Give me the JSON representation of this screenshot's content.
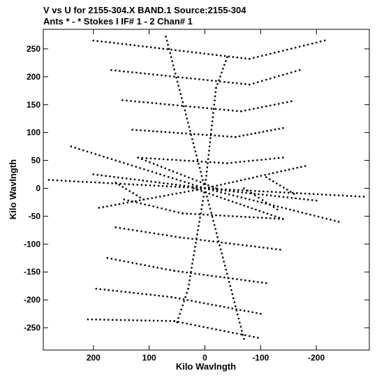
{
  "chart_data": {
    "type": "scatter",
    "title": "V vs U for 2155-304.X BAND.1   Source:2155-304",
    "subtitle": "Ants * - *    Stokes I  IF# 1 - 2  Chan# 1",
    "xlabel": "Kilo Wavlngth",
    "ylabel": "Kilo Wavlngth",
    "xlim": [
      290,
      -295
    ],
    "ylim": [
      -290,
      285
    ],
    "xticks": [
      200,
      100,
      0,
      -100,
      -200
    ],
    "yticks": [
      250,
      200,
      150,
      100,
      50,
      0,
      -50,
      -100,
      -150,
      -200,
      -250
    ],
    "grid": false,
    "legend": "none",
    "marker_color": "#000000",
    "tracks": [
      {
        "from": [
          70,
          272
        ],
        "to": [
          0,
          0
        ]
      },
      {
        "from": [
          200,
          265
        ],
        "to": [
          -80,
          232
        ]
      },
      {
        "from": [
          -80,
          232
        ],
        "to": [
          -215,
          265
        ]
      },
      {
        "from": [
          168,
          212
        ],
        "to": [
          -80,
          186
        ]
      },
      {
        "from": [
          -80,
          186
        ],
        "to": [
          -170,
          212
        ]
      },
      {
        "from": [
          148,
          158
        ],
        "to": [
          -65,
          138
        ]
      },
      {
        "from": [
          -65,
          138
        ],
        "to": [
          -155,
          156
        ]
      },
      {
        "from": [
          130,
          105
        ],
        "to": [
          -55,
          92
        ]
      },
      {
        "from": [
          -55,
          92
        ],
        "to": [
          -140,
          108
        ]
      },
      {
        "from": [
          120,
          55
        ],
        "to": [
          -40,
          45
        ]
      },
      {
        "from": [
          -40,
          45
        ],
        "to": [
          -140,
          55
        ]
      },
      {
        "from": [
          200,
          25
        ],
        "to": [
          0,
          0
        ]
      },
      {
        "from": [
          0,
          0
        ],
        "to": [
          -180,
          40
        ]
      },
      {
        "from": [
          280,
          15
        ],
        "to": [
          0,
          0
        ]
      },
      {
        "from": [
          0,
          0
        ],
        "to": [
          -285,
          -15
        ]
      },
      {
        "from": [
          -200,
          -22
        ],
        "to": [
          0,
          0
        ]
      },
      {
        "from": [
          0,
          0
        ],
        "to": [
          190,
          -35
        ]
      },
      {
        "from": [
          -70,
          0
        ],
        "to": [
          -130,
          -38
        ]
      },
      {
        "from": [
          145,
          -20
        ],
        "to": [
          40,
          -45
        ]
      },
      {
        "from": [
          40,
          -45
        ],
        "to": [
          -140,
          -55
        ]
      },
      {
        "from": [
          160,
          -70
        ],
        "to": [
          45,
          -88
        ]
      },
      {
        "from": [
          45,
          -88
        ],
        "to": [
          -135,
          -110
        ]
      },
      {
        "from": [
          175,
          -125
        ],
        "to": [
          55,
          -148
        ]
      },
      {
        "from": [
          55,
          -148
        ],
        "to": [
          -110,
          -170
        ]
      },
      {
        "from": [
          195,
          -180
        ],
        "to": [
          60,
          -195
        ]
      },
      {
        "from": [
          60,
          -195
        ],
        "to": [
          -100,
          -225
        ]
      },
      {
        "from": [
          210,
          -235
        ],
        "to": [
          55,
          -238
        ]
      },
      {
        "from": [
          55,
          -238
        ],
        "to": [
          -95,
          -268
        ]
      },
      {
        "from": [
          0,
          0
        ],
        "to": [
          -70,
          -270
        ]
      },
      {
        "from": [
          0,
          0
        ],
        "to": [
          -20,
          180
        ]
      },
      {
        "from": [
          -20,
          180
        ],
        "to": [
          -40,
          235
        ]
      },
      {
        "from": [
          0,
          0
        ],
        "to": [
          30,
          -180
        ]
      },
      {
        "from": [
          30,
          -180
        ],
        "to": [
          50,
          -240
        ]
      },
      {
        "from": [
          0,
          0
        ],
        "to": [
          240,
          75
        ]
      },
      {
        "from": [
          0,
          0
        ],
        "to": [
          -240,
          -60
        ]
      },
      {
        "from": [
          120,
          55
        ],
        "to": [
          -20,
          0
        ]
      },
      {
        "from": [
          -140,
          -55
        ],
        "to": [
          20,
          0
        ]
      },
      {
        "from": [
          160,
          10
        ],
        "to": [
          110,
          -20
        ]
      },
      {
        "from": [
          -160,
          -10
        ],
        "to": [
          -110,
          20
        ]
      }
    ]
  }
}
